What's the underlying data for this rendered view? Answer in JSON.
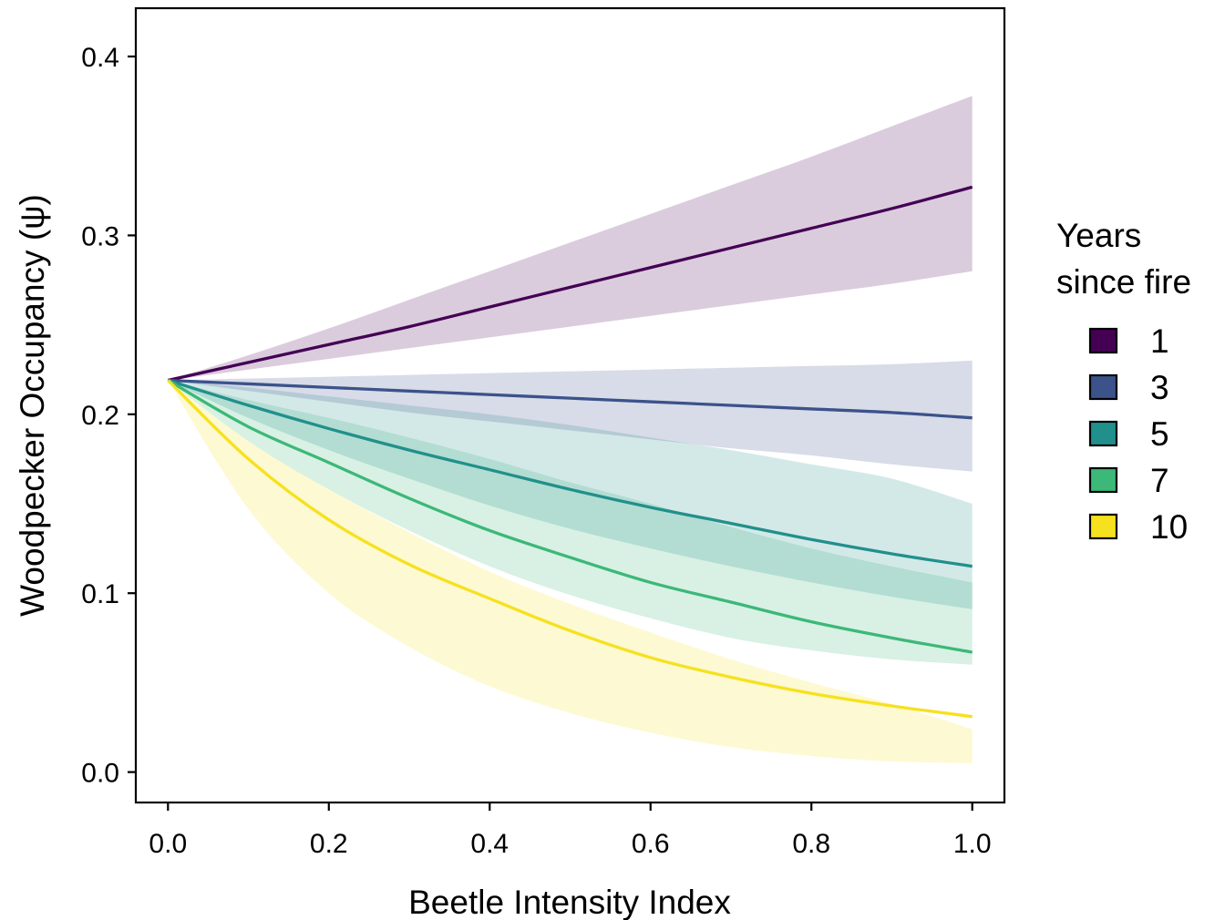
{
  "chart_data": {
    "type": "line",
    "title": "",
    "xlabel": "Beetle Intensity Index",
    "ylabel": "Woodpecker Occupancy (ψ)",
    "xlim": [
      -0.04,
      1.04
    ],
    "ylim": [
      -0.017,
      0.427
    ],
    "x_ticks": [
      0.0,
      0.2,
      0.4,
      0.6,
      0.8,
      1.0
    ],
    "x_tick_labels": [
      "0.0",
      "0.2",
      "0.4",
      "0.6",
      "0.8",
      "1.0"
    ],
    "y_ticks": [
      0.0,
      0.1,
      0.2,
      0.3,
      0.4
    ],
    "y_tick_labels": [
      "0.0",
      "0.1",
      "0.2",
      "0.3",
      "0.4"
    ],
    "grid": false,
    "legend": {
      "title_lines": [
        "Years",
        "since fire"
      ],
      "position": "right"
    },
    "x": [
      0.0,
      0.1,
      0.2,
      0.3,
      0.4,
      0.5,
      0.6,
      0.7,
      0.8,
      0.9,
      1.0
    ],
    "series": [
      {
        "name": "1",
        "color": "#440154",
        "values": [
          0.219,
          0.229,
          0.239,
          0.249,
          0.26,
          0.271,
          0.282,
          0.293,
          0.304,
          0.315,
          0.327
        ],
        "lower": [
          0.219,
          0.225,
          0.231,
          0.237,
          0.243,
          0.249,
          0.255,
          0.261,
          0.267,
          0.273,
          0.28
        ],
        "upper": [
          0.219,
          0.233,
          0.248,
          0.264,
          0.28,
          0.296,
          0.312,
          0.328,
          0.344,
          0.361,
          0.378
        ]
      },
      {
        "name": "3",
        "color": "#3B528B",
        "values": [
          0.219,
          0.217,
          0.215,
          0.213,
          0.211,
          0.209,
          0.207,
          0.205,
          0.203,
          0.201,
          0.198
        ],
        "lower": [
          0.219,
          0.213,
          0.207,
          0.201,
          0.196,
          0.191,
          0.186,
          0.181,
          0.177,
          0.172,
          0.168
        ],
        "upper": [
          0.219,
          0.22,
          0.221,
          0.222,
          0.223,
          0.224,
          0.225,
          0.226,
          0.227,
          0.228,
          0.23
        ]
      },
      {
        "name": "5",
        "color": "#21908C",
        "values": [
          0.219,
          0.205,
          0.192,
          0.18,
          0.169,
          0.158,
          0.148,
          0.139,
          0.13,
          0.122,
          0.115
        ],
        "lower": [
          0.219,
          0.198,
          0.18,
          0.164,
          0.149,
          0.136,
          0.125,
          0.115,
          0.106,
          0.098,
          0.091
        ],
        "upper": [
          0.219,
          0.215,
          0.21,
          0.205,
          0.2,
          0.194,
          0.187,
          0.18,
          0.172,
          0.164,
          0.15
        ]
      },
      {
        "name": "7",
        "color": "#3CB878",
        "values": [
          0.219,
          0.193,
          0.173,
          0.153,
          0.135,
          0.12,
          0.106,
          0.095,
          0.084,
          0.075,
          0.067
        ],
        "lower": [
          0.219,
          0.185,
          0.158,
          0.135,
          0.115,
          0.099,
          0.086,
          0.075,
          0.068,
          0.063,
          0.06
        ],
        "upper": [
          0.219,
          0.208,
          0.198,
          0.187,
          0.175,
          0.162,
          0.15,
          0.137,
          0.125,
          0.115,
          0.106
        ]
      },
      {
        "name": "10",
        "color": "#F6E11F",
        "values": [
          0.219,
          0.175,
          0.141,
          0.116,
          0.097,
          0.079,
          0.064,
          0.053,
          0.044,
          0.037,
          0.031
        ],
        "lower": [
          0.219,
          0.147,
          0.1,
          0.07,
          0.048,
          0.033,
          0.022,
          0.014,
          0.009,
          0.006,
          0.005
        ],
        "upper": [
          0.219,
          0.185,
          0.158,
          0.134,
          0.112,
          0.094,
          0.078,
          0.063,
          0.05,
          0.038,
          0.024
        ]
      }
    ]
  }
}
